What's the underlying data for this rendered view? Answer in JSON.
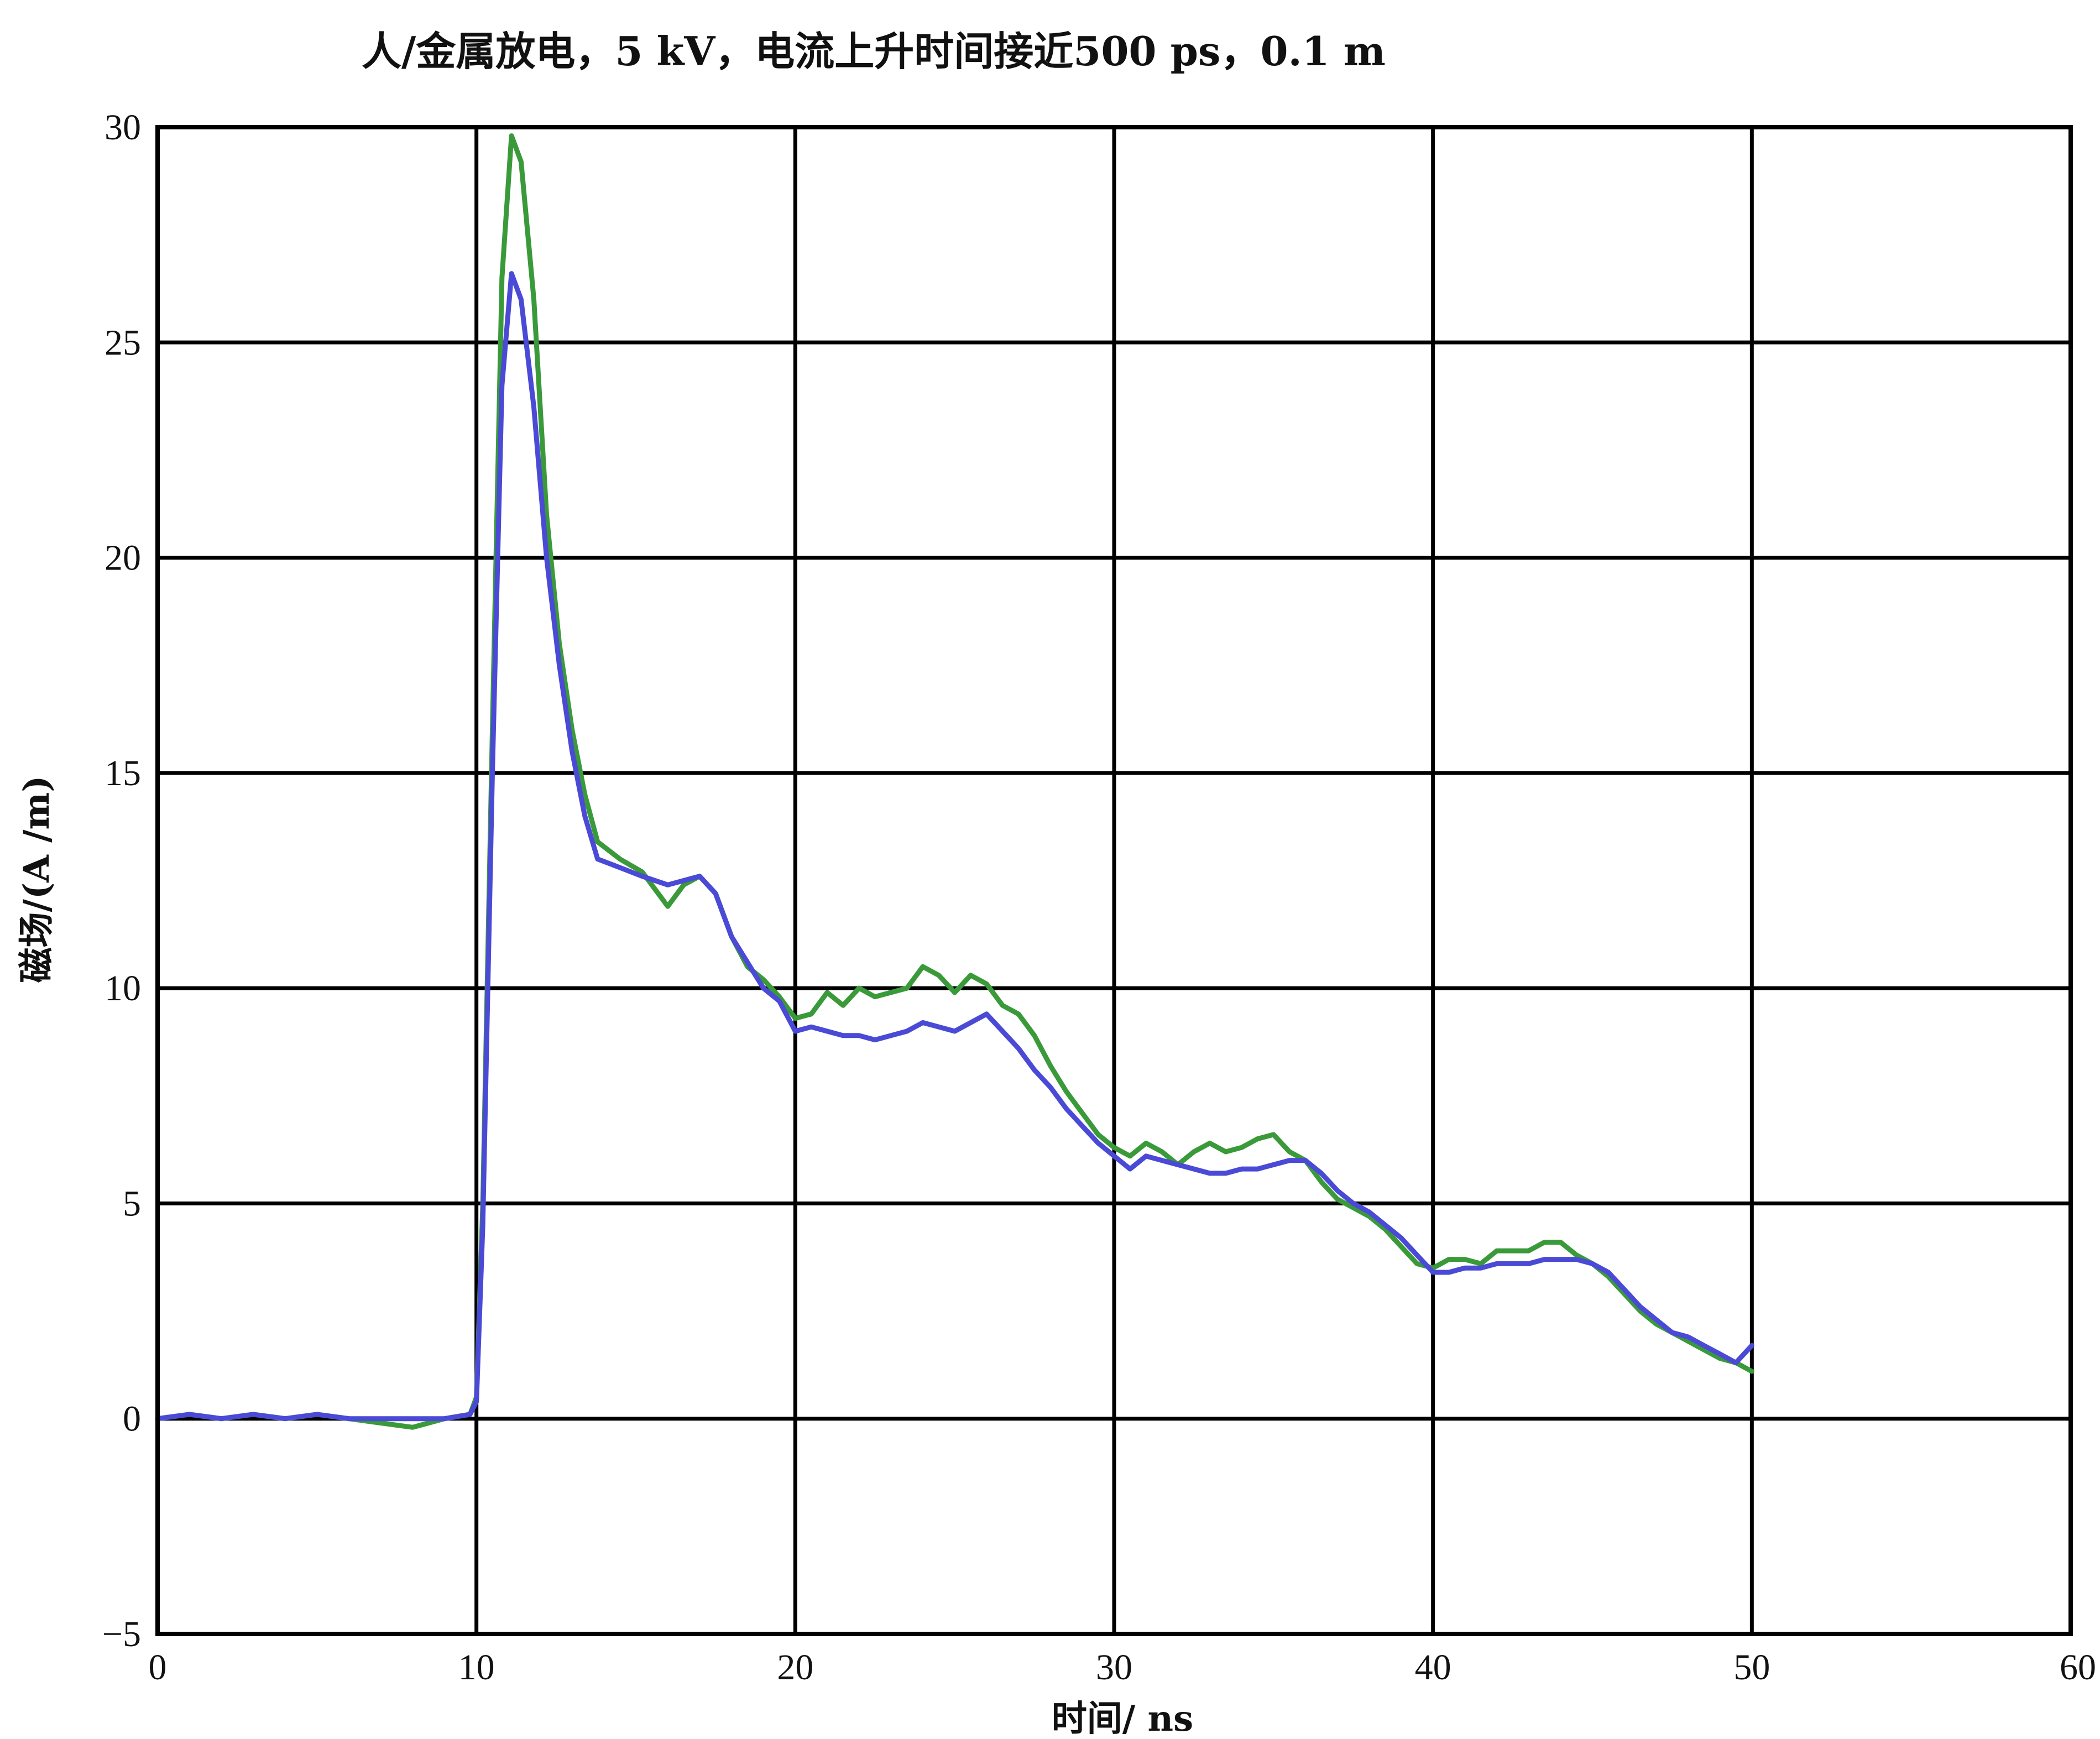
{
  "chart_data": {
    "type": "line",
    "title": "人/金属放电，5 kV，电流上升时间接近500 ps，0.1 m",
    "xlabel": "时间/ ns",
    "ylabel": "磁场/(A /m)",
    "xlim": [
      0,
      60
    ],
    "ylim": [
      -5,
      30
    ],
    "xticks": [
      "0",
      "10",
      "20",
      "30",
      "40",
      "50",
      "60"
    ],
    "yticks": [
      "-5",
      "0",
      "5",
      "10",
      "15",
      "20",
      "25",
      "30"
    ],
    "grid": true,
    "legend": "none",
    "series": [
      {
        "color": "#3a9a3a",
        "x": [
          0,
          1,
          2,
          3,
          4,
          5,
          6,
          7,
          8,
          9,
          9.8,
          10,
          10.2,
          10.5,
          10.8,
          11.1,
          11.4,
          11.8,
          12.2,
          12.6,
          13.0,
          13.4,
          13.8,
          14.5,
          15.2,
          16.0,
          16.5,
          17.0,
          17.5,
          18.0,
          18.5,
          19.0,
          19.5,
          20.0,
          20.5,
          21.0,
          21.5,
          22.0,
          22.5,
          23.0,
          23.5,
          24.0,
          24.5,
          25.0,
          25.5,
          26.0,
          26.5,
          27.0,
          27.5,
          28.0,
          28.5,
          29.0,
          29.5,
          30.0,
          30.5,
          31.0,
          31.5,
          32.0,
          32.5,
          33.0,
          33.5,
          34.0,
          34.5,
          35.0,
          35.5,
          36.0,
          36.5,
          37.0,
          37.5,
          38.0,
          38.5,
          39.0,
          39.5,
          40.0,
          40.5,
          41.0,
          41.5,
          42.0,
          42.5,
          43.0,
          43.5,
          44.0,
          44.5,
          45.0,
          45.5,
          46.0,
          46.5,
          47.0,
          47.5,
          48.0,
          48.5,
          49.0,
          49.5,
          50.0
        ],
        "y": [
          0.0,
          0.1,
          0.0,
          0.1,
          0.0,
          0.1,
          0.0,
          -0.1,
          -0.2,
          0.0,
          0.1,
          0.5,
          5.0,
          16.0,
          26.5,
          29.8,
          29.2,
          26.0,
          21.0,
          18.0,
          16.0,
          14.5,
          13.4,
          13.0,
          12.7,
          11.9,
          12.4,
          12.6,
          12.2,
          11.2,
          10.5,
          10.2,
          9.8,
          9.3,
          9.4,
          9.9,
          9.6,
          10.0,
          9.8,
          9.9,
          10.0,
          10.5,
          10.3,
          9.9,
          10.3,
          10.1,
          9.6,
          9.4,
          8.9,
          8.2,
          7.6,
          7.1,
          6.6,
          6.3,
          6.1,
          6.4,
          6.2,
          5.9,
          6.2,
          6.4,
          6.2,
          6.3,
          6.5,
          6.6,
          6.2,
          6.0,
          5.5,
          5.1,
          4.9,
          4.7,
          4.4,
          4.0,
          3.6,
          3.5,
          3.7,
          3.7,
          3.6,
          3.9,
          3.9,
          3.9,
          4.1,
          4.1,
          3.8,
          3.6,
          3.3,
          2.9,
          2.5,
          2.2,
          2.0,
          1.8,
          1.6,
          1.4,
          1.3,
          1.1
        ]
      },
      {
        "color": "#4a4ad6",
        "x": [
          0,
          1,
          2,
          3,
          4,
          5,
          6,
          7,
          8,
          9,
          9.8,
          10,
          10.2,
          10.5,
          10.8,
          11.1,
          11.4,
          11.8,
          12.2,
          12.6,
          13.0,
          13.4,
          13.8,
          14.5,
          15.2,
          16.0,
          16.5,
          17.0,
          17.5,
          18.0,
          18.5,
          19.0,
          19.5,
          20.0,
          20.5,
          21.0,
          21.5,
          22.0,
          22.5,
          23.0,
          23.5,
          24.0,
          24.5,
          25.0,
          25.5,
          26.0,
          26.5,
          27.0,
          27.5,
          28.0,
          28.5,
          29.0,
          29.5,
          30.0,
          30.5,
          31.0,
          31.5,
          32.0,
          32.5,
          33.0,
          33.5,
          34.0,
          34.5,
          35.0,
          35.5,
          36.0,
          36.5,
          37.0,
          37.5,
          38.0,
          38.5,
          39.0,
          39.5,
          40.0,
          40.5,
          41.0,
          41.5,
          42.0,
          42.5,
          43.0,
          43.5,
          44.0,
          44.5,
          45.0,
          45.5,
          46.0,
          46.5,
          47.0,
          47.5,
          48.0,
          48.5,
          49.0,
          49.5,
          50.0
        ],
        "y": [
          0.0,
          0.1,
          0.0,
          0.1,
          0.0,
          0.1,
          0.0,
          0.0,
          0.0,
          0.0,
          0.1,
          0.4,
          4.5,
          15.0,
          24.0,
          26.6,
          26.0,
          23.5,
          20.0,
          17.5,
          15.5,
          14.0,
          13.0,
          12.8,
          12.6,
          12.4,
          12.5,
          12.6,
          12.2,
          11.2,
          10.6,
          10.0,
          9.7,
          9.0,
          9.1,
          9.0,
          8.9,
          8.9,
          8.8,
          8.9,
          9.0,
          9.2,
          9.1,
          9.0,
          9.2,
          9.4,
          9.0,
          8.6,
          8.1,
          7.7,
          7.2,
          6.8,
          6.4,
          6.1,
          5.8,
          6.1,
          6.0,
          5.9,
          5.8,
          5.7,
          5.7,
          5.8,
          5.8,
          5.9,
          6.0,
          6.0,
          5.7,
          5.3,
          5.0,
          4.8,
          4.5,
          4.2,
          3.8,
          3.4,
          3.4,
          3.5,
          3.5,
          3.6,
          3.6,
          3.6,
          3.7,
          3.7,
          3.7,
          3.6,
          3.4,
          3.0,
          2.6,
          2.3,
          2.0,
          1.9,
          1.7,
          1.5,
          1.3,
          1.7
        ]
      }
    ]
  }
}
